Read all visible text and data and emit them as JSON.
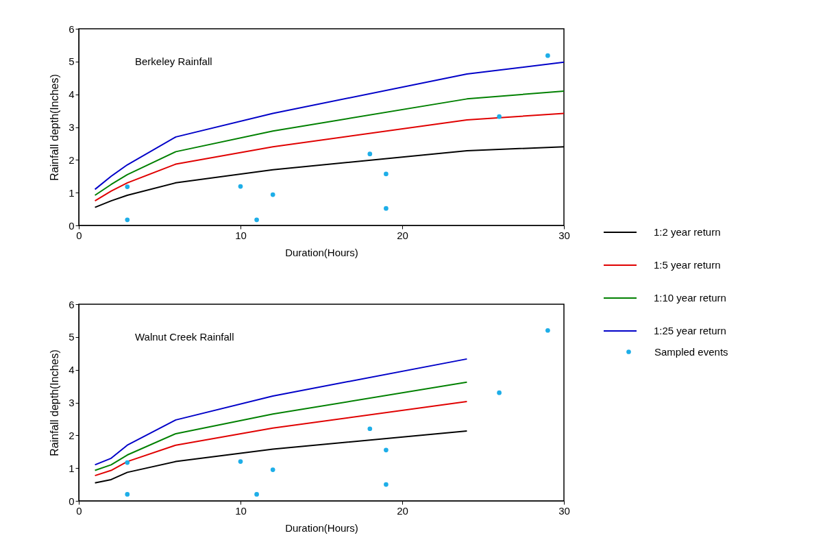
{
  "chart_data": [
    {
      "type": "line",
      "title": "Berkeley Rainfall",
      "xlabel": "Duration(Hours)",
      "ylabel": "Rainfall depth(Inches)",
      "xlim": [
        0,
        30
      ],
      "ylim": [
        0,
        6
      ],
      "xticks": [
        0,
        10,
        20,
        30
      ],
      "yticks": [
        0,
        1,
        2,
        3,
        4,
        5,
        6
      ],
      "grid": false,
      "legend": "right",
      "marker": "none",
      "series": [
        {
          "name": "1:2 year return",
          "color": "#000000",
          "x": [
            1,
            2,
            3,
            6,
            12,
            24,
            30
          ],
          "values": [
            0.55,
            0.75,
            0.92,
            1.3,
            1.7,
            2.28,
            2.4
          ]
        },
        {
          "name": "1:5 year return",
          "color": "#e00000",
          "x": [
            1,
            2,
            3,
            6,
            12,
            24,
            30
          ],
          "values": [
            0.75,
            1.05,
            1.3,
            1.87,
            2.4,
            3.22,
            3.42
          ]
        },
        {
          "name": "1:10 year return",
          "color": "#008000",
          "x": [
            1,
            2,
            3,
            6,
            12,
            24,
            30
          ],
          "values": [
            0.92,
            1.25,
            1.55,
            2.25,
            2.88,
            3.86,
            4.1
          ]
        },
        {
          "name": "1:25 year return",
          "color": "#0000c8",
          "x": [
            1,
            2,
            3,
            6,
            12,
            24,
            30
          ],
          "values": [
            1.1,
            1.5,
            1.85,
            2.7,
            3.42,
            4.62,
            4.98
          ]
        },
        {
          "name": "Sampled events",
          "type": "scatter",
          "marker": "circle",
          "color": "#1eaee8",
          "x": [
            3,
            3,
            10,
            11,
            12,
            18,
            19,
            19,
            26,
            29
          ],
          "values": [
            1.18,
            0.17,
            1.19,
            0.17,
            0.94,
            2.18,
            1.57,
            0.52,
            3.32,
            5.18
          ]
        }
      ]
    },
    {
      "type": "line",
      "title": "Walnut Creek Rainfall",
      "xlabel": "Duration(Hours)",
      "ylabel": "Rainfall depth(Inches)",
      "xlim": [
        0,
        30
      ],
      "ylim": [
        0,
        6
      ],
      "xticks": [
        0,
        10,
        20,
        30
      ],
      "yticks": [
        0,
        1,
        2,
        3,
        4,
        5,
        6
      ],
      "grid": false,
      "legend": false,
      "marker": "none",
      "series": [
        {
          "color": "#000000",
          "x": [
            1,
            2,
            3,
            6,
            12,
            24
          ],
          "values": [
            0.55,
            0.65,
            0.87,
            1.2,
            1.58,
            2.13
          ]
        },
        {
          "color": "#e00000",
          "x": [
            1,
            2,
            3,
            6,
            12,
            24
          ],
          "values": [
            0.77,
            0.93,
            1.2,
            1.7,
            2.22,
            3.03
          ]
        },
        {
          "color": "#008000",
          "x": [
            1,
            2,
            3,
            6,
            12,
            24
          ],
          "values": [
            0.93,
            1.1,
            1.4,
            2.05,
            2.65,
            3.62
          ]
        },
        {
          "color": "#0000c8",
          "x": [
            1,
            2,
            3,
            6,
            12,
            24
          ],
          "values": [
            1.1,
            1.3,
            1.7,
            2.47,
            3.2,
            4.33
          ]
        },
        {
          "type": "scatter",
          "marker": "circle",
          "color": "#1eaee8",
          "x": [
            3,
            3,
            10,
            11,
            12,
            18,
            19,
            19,
            26,
            29
          ],
          "values": [
            1.17,
            0.2,
            1.2,
            0.2,
            0.95,
            2.2,
            1.55,
            0.5,
            3.3,
            5.2
          ]
        }
      ]
    }
  ]
}
